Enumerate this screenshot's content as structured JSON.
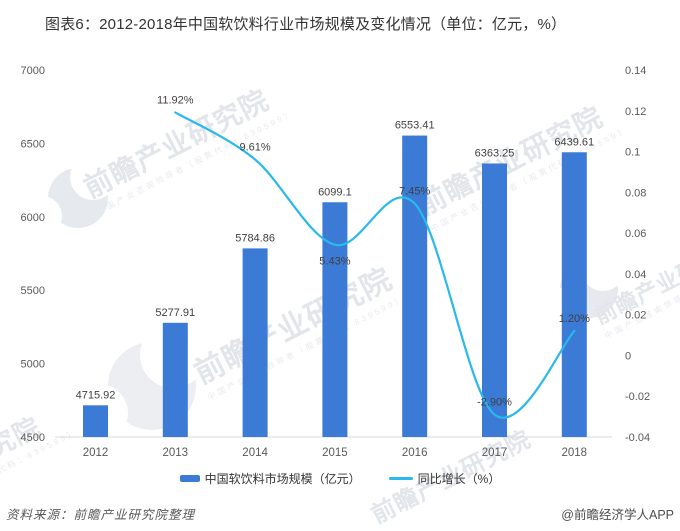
{
  "title": "图表6：2012-2018年中国软饮料行业市场规模及变化情况（单位：亿元，%）",
  "chart_data": {
    "type": "combo",
    "categories": [
      "2012",
      "2013",
      "2014",
      "2015",
      "2016",
      "2017",
      "2018"
    ],
    "series": [
      {
        "name": "中国软饮料市场规模（亿元）",
        "type": "bar",
        "axis": "left",
        "color": "#3b7bd6",
        "values": [
          4715.92,
          5277.91,
          5784.86,
          6099.1,
          6553.41,
          6363.25,
          6439.61
        ],
        "labels": [
          "4715.92",
          "5277.91",
          "5784.86",
          "6099.1",
          "6553.41",
          "6363.25",
          "6439.61"
        ]
      },
      {
        "name": "同比增长（%）",
        "type": "line",
        "axis": "right",
        "color": "#29b9ea",
        "smooth": true,
        "categories": [
          "2013",
          "2014",
          "2015",
          "2016",
          "2017",
          "2018"
        ],
        "values": [
          0.1192,
          0.0961,
          0.0543,
          0.0745,
          -0.029,
          0.012
        ],
        "labels": [
          "11.92%",
          "9.61%",
          "5.43%",
          "7.45%",
          "-2.90%",
          "1.20%"
        ],
        "label_placement": [
          "above",
          "above",
          "below",
          "above",
          "above",
          "above"
        ]
      }
    ],
    "left_axis": {
      "min": 4500,
      "max": 7000,
      "step": 500,
      "ticks": [
        "4500",
        "5000",
        "5500",
        "6000",
        "6500",
        "7000"
      ]
    },
    "right_axis": {
      "min": -0.04,
      "max": 0.14,
      "step": 0.02,
      "ticks": [
        "-0.04",
        "-0.02",
        "0",
        "0.02",
        "0.04",
        "0.06",
        "0.08",
        "0.1",
        "0.12",
        "0.14"
      ]
    },
    "grid": false,
    "legend_position": "bottom"
  },
  "legend": {
    "bar_label": "中国软饮料市场规模（亿元）",
    "line_label": "同比增长（%）"
  },
  "footer": {
    "source": "资料来源：前瞻产业研究院整理",
    "brand": "@前瞻经济学人APP"
  },
  "watermark": {
    "text": "前瞻产业研究院",
    "subtext": "中国产业咨询领导者（股票代码：839599）"
  },
  "colors": {
    "bar": "#3b7bd6",
    "line": "#29b9ea",
    "axis_line": "#d9d9d9",
    "data_label": "#404040",
    "tick_label": "#595959",
    "title": "#333333",
    "watermark": "#e2e5ea"
  }
}
